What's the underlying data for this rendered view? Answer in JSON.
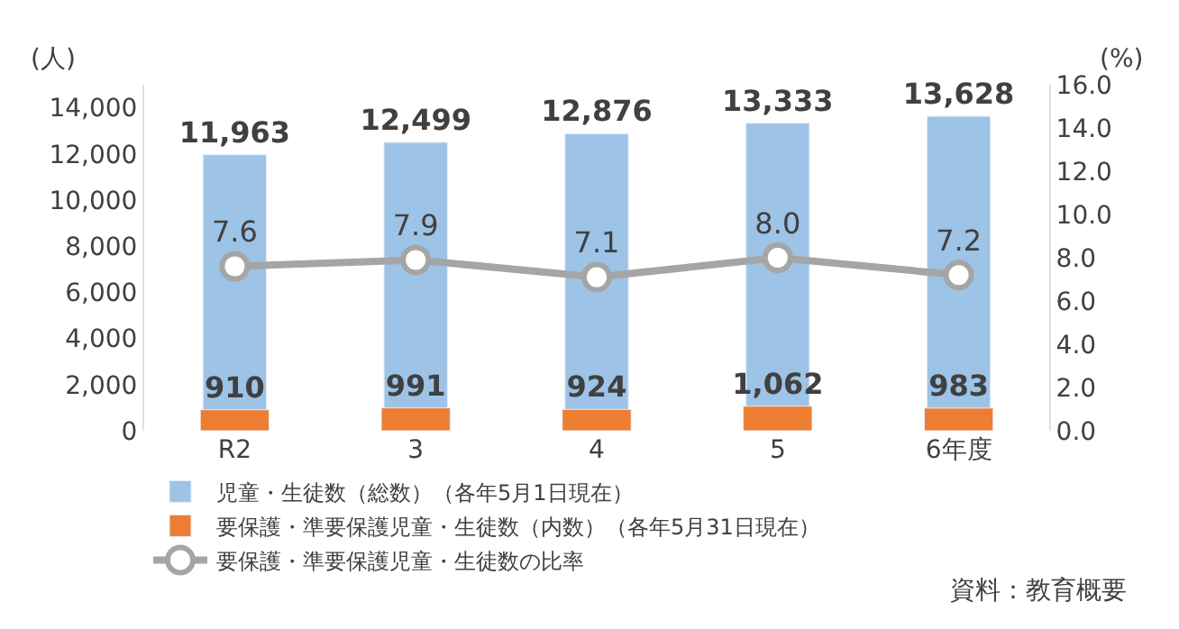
{
  "chart_data": {
    "type": "bar",
    "categories": [
      "R2",
      "3",
      "4",
      "5",
      "6年度"
    ],
    "ylabel": "(人)",
    "y2label": "(%)",
    "series": [
      {
        "name": "児童・生徒数（総数）（各年5月1日現在）",
        "color": "#9dc3e6",
        "values": [
          11963,
          12499,
          12876,
          13333,
          13628
        ],
        "value_labels": [
          "11,963",
          "12,499",
          "12,876",
          "13,333",
          "13,628"
        ]
      },
      {
        "name": "要保護・準要保護児童・生徒数（内数）（各年5月31日現在）",
        "color": "#ed7d31",
        "values": [
          910,
          991,
          924,
          1062,
          983
        ],
        "value_labels": [
          "910",
          "991",
          "924",
          "1,062",
          "983"
        ]
      },
      {
        "name": "要保護・準要保護児童・生徒数の比率",
        "type": "line",
        "axis": "y2",
        "color": "#a5a5a5",
        "values": [
          7.6,
          7.9,
          7.1,
          8.0,
          7.2
        ],
        "value_labels": [
          "7.6",
          "7.9",
          "7.1",
          "8.0",
          "7.2"
        ]
      }
    ],
    "ylim": [
      0,
      15000
    ],
    "yticks": [
      0,
      {
        "value": 2000,
        "label": "2,000"
      },
      {
        "value": 4000,
        "label": "4,000"
      },
      {
        "value": 6000,
        "label": "6,000"
      },
      {
        "value": 8000,
        "label": "8,000"
      },
      {
        "value": 10000,
        "label": "10,000"
      },
      {
        "value": 12000,
        "label": "12,000"
      },
      {
        "value": 14000,
        "label": "14,000"
      }
    ],
    "y2lim": [
      0,
      16
    ],
    "y2ticks": [
      {
        "value": 0,
        "label": "0.0"
      },
      {
        "value": 2,
        "label": "2.0"
      },
      {
        "value": 4,
        "label": "4.0"
      },
      {
        "value": 6,
        "label": "6.0"
      },
      {
        "value": 8,
        "label": "8.0"
      },
      {
        "value": 10,
        "label": "10.0"
      },
      {
        "value": 12,
        "label": "12.0"
      },
      {
        "value": 14,
        "label": "14.0"
      },
      {
        "value": 16,
        "label": "16.0"
      }
    ],
    "marker": "circle",
    "legend": "bottom",
    "annotations": [
      "資料：教育概要"
    ]
  }
}
